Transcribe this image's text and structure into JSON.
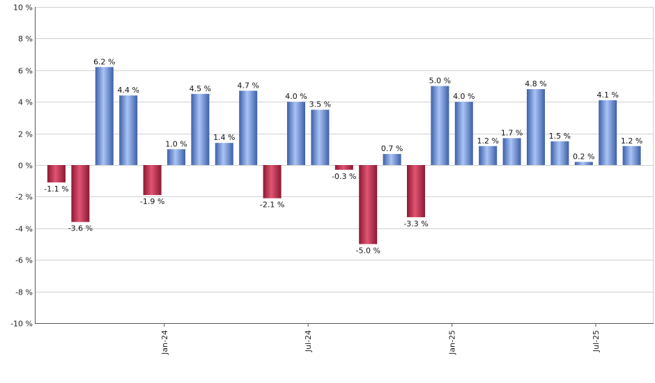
{
  "chart_data": {
    "type": "bar",
    "title": "",
    "xlabel": "",
    "ylabel": "",
    "ylim": [
      -10,
      10
    ],
    "ytick_step": 2,
    "ytick_suffix": " %",
    "value_suffix": " %",
    "grid": true,
    "values": [
      -1.1,
      -3.6,
      6.2,
      4.4,
      -1.9,
      1.0,
      4.5,
      1.4,
      4.7,
      -2.1,
      4.0,
      3.5,
      -0.3,
      -5.0,
      0.7,
      -3.3,
      5.0,
      4.0,
      1.2,
      1.7,
      4.8,
      1.5,
      0.2,
      4.1,
      1.2
    ],
    "value_labels": [
      "-1.1 %",
      "-3.6 %",
      "6.2 %",
      "4.4 %",
      "-1.9 %",
      "1.0 %",
      "4.5 %",
      "1.4 %",
      "4.7 %",
      "-2.1 %",
      "4.0 %",
      "3.5 %",
      "-0.3 %",
      "-5.0 %",
      "0.7 %",
      "-3.3 %",
      "5.0 %",
      "4.0 %",
      "1.2 %",
      "1.7 %",
      "4.8 %",
      "1.5 %",
      "0.2 %",
      "4.1 %",
      "1.2 %"
    ],
    "x_tick_labels": [
      {
        "label": "Jan-24",
        "after_index": 4
      },
      {
        "label": "Jul-24",
        "after_index": 10
      },
      {
        "label": "Jan-25",
        "after_index": 16
      },
      {
        "label": "Jul-25",
        "after_index": 22
      }
    ],
    "colors": {
      "positive_light": "#a9c4f5",
      "positive_dark": "#3e5fa8",
      "negative_light": "#e05573",
      "negative_dark": "#8c1832"
    }
  }
}
